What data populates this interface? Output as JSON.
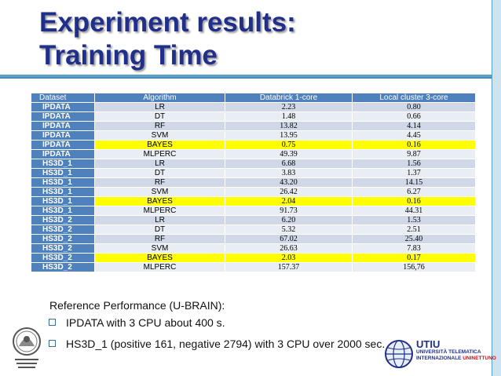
{
  "slide": {
    "title_line1": "Experiment results:",
    "title_line2": "Training Time"
  },
  "table": {
    "headers": [
      "Dataset",
      "Algorithm",
      "Databrick 1-core",
      "Local cluster 3-core"
    ],
    "rows": [
      {
        "dataset": "IPDATA",
        "algorithm": "LR",
        "databrick": "2.23",
        "local": "0.80",
        "highlight": false
      },
      {
        "dataset": "IPDATA",
        "algorithm": "DT",
        "databrick": "1.48",
        "local": "0.66",
        "highlight": false
      },
      {
        "dataset": "IPDATA",
        "algorithm": "RF",
        "databrick": "13.82",
        "local": "4.14",
        "highlight": false
      },
      {
        "dataset": "IPDATA",
        "algorithm": "SVM",
        "databrick": "13.95",
        "local": "4.45",
        "highlight": false
      },
      {
        "dataset": "IPDATA",
        "algorithm": "BAYES",
        "databrick": "0.75",
        "local": "0.16",
        "highlight": true
      },
      {
        "dataset": "IPDATA",
        "algorithm": "MLPERC",
        "databrick": "49.39",
        "local": "9.87",
        "highlight": false
      },
      {
        "dataset": "HS3D_1",
        "algorithm": "LR",
        "databrick": "6.68",
        "local": "1.56",
        "highlight": false
      },
      {
        "dataset": "HS3D_1",
        "algorithm": "DT",
        "databrick": "3.83",
        "local": "1.37",
        "highlight": false
      },
      {
        "dataset": "HS3D_1",
        "algorithm": "RF",
        "databrick": "43.20",
        "local": "14.15",
        "highlight": false
      },
      {
        "dataset": "HS3D_1",
        "algorithm": "SVM",
        "databrick": "26.42",
        "local": "6.27",
        "highlight": false
      },
      {
        "dataset": "HS3D_1",
        "algorithm": "BAYES",
        "databrick": "2.04",
        "local": "0.16",
        "highlight": true
      },
      {
        "dataset": "HS3D_1",
        "algorithm": "MLPERC",
        "databrick": "91.73",
        "local": "44.31",
        "highlight": false
      },
      {
        "dataset": "HS3D_2",
        "algorithm": "LR",
        "databrick": "6.20",
        "local": "1.53",
        "highlight": false
      },
      {
        "dataset": "HS3D_2",
        "algorithm": "DT",
        "databrick": "5.32",
        "local": "2.51",
        "highlight": false
      },
      {
        "dataset": "HS3D_2",
        "algorithm": "RF",
        "databrick": "67.02",
        "local": "25.40",
        "highlight": false
      },
      {
        "dataset": "HS3D_2",
        "algorithm": "SVM",
        "databrick": "26.63",
        "local": "7.83",
        "highlight": false
      },
      {
        "dataset": "HS3D_2",
        "algorithm": "BAYES",
        "databrick": "2.03",
        "local": "0.17",
        "highlight": true
      },
      {
        "dataset": "HS3D_2",
        "algorithm": "MLPERC",
        "databrick": "157.37",
        "local": "156,76",
        "highlight": false
      }
    ]
  },
  "reference": {
    "heading": "Reference Performance (U-BRAIN):",
    "bullets": [
      "IPDATA with 3 CPU about 400 s.",
      "HS3D_1 (positive 161, negative 2794) with 3 CPU over 2000 sec."
    ]
  },
  "logos": {
    "left_caption": "Università degli Studi di Salerno",
    "right_name": "UTIU",
    "right_line1": "UNIVERSITÀ TELEMATICA",
    "right_line2": "INTERNAZIONALE",
    "right_line3": "UNINETTUNO"
  },
  "colors": {
    "title": "#1f2f8a",
    "header_fill": "#4f81bd",
    "row_odd": "#d0d8e8",
    "row_even": "#e9edf4",
    "highlight": "#ffff00",
    "accent_bar": "#5aa0c8"
  }
}
